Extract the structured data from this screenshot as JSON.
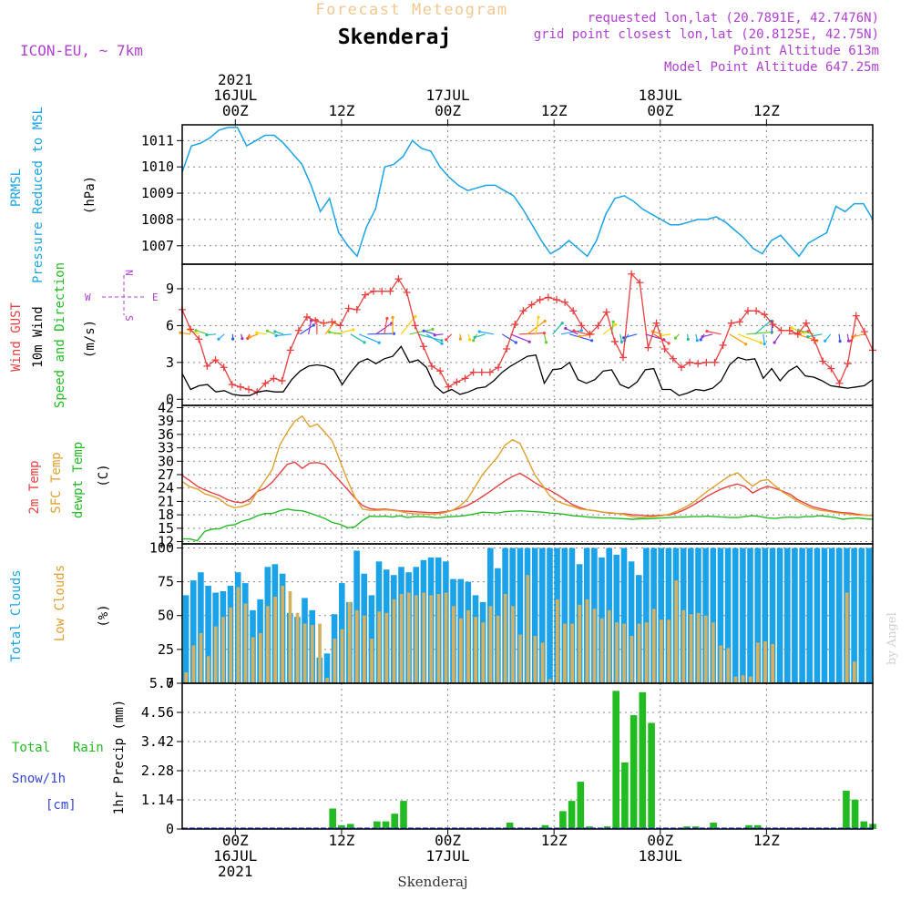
{
  "header": {
    "title": "Forecast Meteogram",
    "location": "Skenderaj",
    "model": "ICON-EU, ~ 7km",
    "requested": "requested lon,lat (20.7891E, 42.7476N)",
    "gridpoint": "grid point closest lon,lat (20.8125E, 42.75N)",
    "point_alt": "Point Altitude 613m",
    "model_alt": "Model Point Altitude 647.25m",
    "credit": "by Angel",
    "footer": "Skenderaj"
  },
  "colors": {
    "pressure": "#1aa3e8",
    "gust": "#e84040",
    "wind": "#000000",
    "temp2m": "#e84040",
    "sfctemp": "#e0a030",
    "dewpt": "#22bb22",
    "total_clouds": "#1aa3e8",
    "low_clouds": "#d4b060",
    "precip": "#22bb22",
    "snow": "#3344dd",
    "title": "#f0c890",
    "magenta": "#b040d0"
  },
  "chart_data": [
    {
      "type": "line",
      "panel": "pressure",
      "ylabel": [
        "PRMSL",
        "Pressure Reduced to MSL",
        "(hPa)"
      ],
      "ylim": [
        1006.3,
        1011.6
      ],
      "yticks": [
        1007,
        1008,
        1009,
        1010,
        1011
      ],
      "series": [
        {
          "values": [
            1009.8,
            1010.8,
            1010.9,
            1011.1,
            1011.4,
            1011.5,
            1011.5,
            1010.8,
            1011.0,
            1011.2,
            1011.2,
            1010.9,
            1010.5,
            1010.1,
            1009.3,
            1008.3,
            1008.8,
            1007.5,
            1007.0,
            1006.6,
            1007.7,
            1008.4,
            1010.0,
            1010.1,
            1010.4,
            1011.0,
            1010.7,
            1010.6,
            1010.0,
            1009.6,
            1009.3,
            1009.1,
            1009.2,
            1009.3,
            1009.3,
            1009.1,
            1008.9,
            1008.4,
            1007.8,
            1007.2,
            1006.7,
            1006.9,
            1007.2,
            1006.9,
            1006.6,
            1007.2,
            1008.2,
            1008.8,
            1008.9,
            1008.7,
            1008.4,
            1008.2,
            1008.0,
            1007.8,
            1007.8,
            1007.9,
            1008.0,
            1008.0,
            1008.1,
            1007.9,
            1007.6,
            1007.3,
            1006.9,
            1006.7,
            1007.2,
            1007.4,
            1007.0,
            1006.6,
            1007.1,
            1007.3,
            1007.5,
            1008.5,
            1008.3,
            1008.6,
            1008.6,
            1008.0
          ]
        }
      ]
    },
    {
      "type": "line",
      "panel": "wind",
      "ylabel": [
        "Wind GUST",
        "10m Wind",
        "Speed and Direction",
        "(m/s)"
      ],
      "compass": [
        "N",
        "S",
        "W",
        "E"
      ],
      "ylim": [
        -0.5,
        11
      ],
      "yticks": [
        0,
        3,
        6,
        9
      ],
      "series": [
        {
          "values": [
            7.3,
            5.7,
            4.9,
            2.7,
            3.2,
            2.6,
            1.2,
            1.0,
            0.8,
            0.6,
            1.3,
            1.7,
            1.5,
            4.0,
            5.6,
            6.7,
            6.4,
            6.2,
            6.3,
            6.0,
            7.4,
            7.3,
            8.5,
            8.8,
            8.8,
            8.8,
            9.8,
            8.7,
            6.0,
            4.3,
            2.7,
            2.3,
            1.0,
            1.4,
            1.7,
            2.2,
            2.2,
            2.2,
            2.6,
            4.1,
            6.1,
            7.2,
            7.7,
            8.1,
            8.3,
            8.1,
            7.9,
            7.2,
            6.0,
            5.3,
            6.0,
            7.1,
            4.7,
            3.4,
            10.2,
            9.5,
            4.2,
            6.2,
            4.1,
            3.3,
            2.6,
            3.0,
            2.9,
            3.0,
            3.0,
            4.4,
            6.2,
            6.3,
            7.2,
            7.2,
            6.9,
            6.1,
            5.6,
            5.6,
            5.3,
            6.2,
            4.8,
            3.1,
            2.5,
            1.3,
            2.9,
            6.8,
            5.5,
            4.0
          ]
        },
        {
          "values": [
            2.1,
            0.8,
            1.1,
            1.2,
            0.6,
            0.7,
            0.4,
            0.3,
            0.3,
            0.6,
            0.7,
            0.6,
            0.6,
            1.6,
            2.3,
            2.7,
            2.8,
            2.7,
            2.4,
            1.2,
            2.2,
            3.0,
            3.3,
            2.9,
            3.3,
            3.5,
            4.3,
            3.0,
            3.2,
            2.6,
            1.1,
            0.5,
            0.8,
            0.4,
            0.6,
            0.9,
            1.0,
            1.5,
            2.2,
            2.7,
            3.1,
            3.5,
            3.6,
            1.3,
            2.4,
            2.5,
            3.0,
            1.6,
            1.3,
            1.6,
            2.3,
            2.4,
            1.2,
            0.9,
            1.4,
            2.4,
            2.5,
            0.8,
            0.8,
            0.3,
            0.5,
            0.8,
            0.7,
            0.9,
            1.5,
            2.8,
            3.4,
            3.2,
            3.3,
            1.7,
            2.5,
            1.5,
            2.3,
            2.7,
            1.9,
            1.8,
            1.5,
            1.1,
            1.0,
            0.9,
            1.0,
            1.1,
            1.6
          ]
        }
      ]
    },
    {
      "type": "line",
      "panel": "temperature",
      "ylabel": [
        "2m Temp",
        "SFC Temp",
        "dewpt Temp",
        "(C)"
      ],
      "ylim": [
        11.5,
        42.5
      ],
      "yticks": [
        12,
        15,
        18,
        21,
        24,
        27,
        30,
        33,
        36,
        39,
        42
      ],
      "series": [
        {
          "values": [
            26.8,
            25.7,
            24.4,
            23.6,
            22.9,
            22.3,
            21.4,
            20.9,
            20.7,
            21.5,
            23.2,
            23.9,
            25.3,
            27.3,
            29.3,
            29.8,
            28.4,
            29.6,
            29.7,
            29.3,
            27.4,
            25.6,
            23.7,
            21.8,
            20.1,
            19.4,
            19.2,
            19.3,
            19.1,
            18.9,
            18.8,
            18.7,
            18.6,
            18.5,
            18.5,
            18.7,
            19.0,
            19.5,
            20.1,
            21.0,
            22.1,
            23.2,
            24.4,
            25.6,
            26.6,
            27.3,
            26.3,
            25.2,
            24.2,
            23.5,
            22.5,
            21.4,
            20.3,
            19.6,
            19.1,
            18.9,
            18.6,
            18.4,
            18.3,
            18.2,
            18.0,
            17.9,
            17.8,
            17.8,
            17.9,
            18.0,
            18.5,
            19.2,
            20.1,
            21.1,
            22.2,
            23.1,
            23.9,
            24.5,
            24.9,
            24.3,
            22.9,
            23.8,
            24.4,
            23.9,
            23.3,
            22.6,
            21.4,
            20.6,
            19.8,
            19.4,
            19.0,
            18.7,
            18.5,
            18.4,
            18.1,
            17.9,
            17.8
          ]
        },
        {
          "values": [
            25.5,
            24.3,
            23.8,
            22.7,
            22.2,
            21.5,
            20.2,
            19.6,
            19.9,
            20.5,
            23.2,
            25.6,
            28.2,
            33.6,
            36.5,
            39.0,
            40.1,
            37.7,
            38.3,
            36.5,
            34.5,
            30.2,
            25.8,
            22.0,
            19.3,
            19.0,
            19.0,
            19.1,
            19.0,
            18.8,
            18.4,
            18.2,
            18.2,
            18.1,
            18.2,
            18.5,
            19.0,
            20.0,
            21.5,
            24.2,
            27.0,
            29.0,
            30.9,
            33.6,
            34.8,
            34.0,
            30.5,
            26.9,
            24.6,
            22.2,
            21.0,
            20.4,
            19.9,
            19.3,
            19.1,
            18.9,
            18.6,
            18.5,
            18.3,
            18.0,
            17.6,
            17.4,
            17.5,
            17.6,
            17.8,
            18.2,
            18.9,
            19.7,
            20.7,
            22.0,
            23.3,
            24.5,
            25.7,
            26.8,
            27.4,
            25.8,
            24.4,
            25.6,
            25.9,
            24.5,
            23.1,
            22.1,
            21.0,
            20.1,
            19.4,
            19.0,
            18.8,
            18.5,
            18.3,
            18.1,
            17.9,
            17.9,
            17.8
          ]
        },
        {
          "values": [
            12.6,
            12.6,
            12.2,
            14.3,
            14.8,
            14.9,
            15.6,
            15.8,
            16.6,
            17.0,
            17.8,
            18.3,
            18.3,
            18.9,
            19.3,
            19.0,
            18.9,
            18.4,
            17.8,
            17.2,
            16.3,
            15.9,
            15.1,
            15.3,
            16.7,
            17.7,
            17.6,
            17.7,
            17.5,
            17.8,
            17.4,
            17.6,
            17.6,
            17.5,
            17.3,
            17.5,
            17.6,
            17.7,
            17.9,
            18.2,
            18.6,
            18.5,
            18.4,
            18.7,
            18.8,
            18.9,
            18.8,
            18.7,
            18.6,
            18.4,
            18.3,
            18.1,
            17.8,
            17.7,
            17.5,
            17.4,
            17.3,
            17.3,
            17.2,
            17.1,
            17.0,
            17.1,
            17.1,
            17.2,
            17.3,
            17.4,
            17.5,
            17.5,
            17.6,
            17.6,
            17.7,
            17.6,
            17.5,
            17.4,
            17.4,
            17.6,
            17.8,
            17.6,
            17.3,
            17.2,
            17.4,
            17.5,
            17.4,
            17.6,
            17.6,
            17.8,
            17.6,
            17.4,
            17.0,
            17.2,
            17.3,
            17.1,
            17.0
          ]
        }
      ]
    },
    {
      "type": "bar",
      "panel": "clouds",
      "ylabel": [
        "Total Clouds",
        "Low Clouds",
        "(%)"
      ],
      "ylim": [
        0,
        103
      ],
      "yticks": [
        0,
        25,
        50,
        75,
        100
      ],
      "series": [
        {
          "values": [
            65,
            76,
            82,
            72,
            67,
            68,
            72,
            82,
            74,
            54,
            62,
            86,
            88,
            81,
            52,
            49,
            63,
            54,
            19,
            22,
            51,
            74,
            60,
            98,
            81,
            65,
            90,
            84,
            80,
            86,
            82,
            86,
            91,
            93,
            93,
            90,
            77,
            77,
            75,
            65,
            60,
            100,
            85,
            100,
            100,
            100,
            100,
            100,
            100,
            100,
            100,
            100,
            100,
            88,
            100,
            100,
            93,
            100,
            95,
            100,
            90,
            80,
            100,
            100,
            100,
            100,
            100,
            100,
            100,
            100,
            100,
            100,
            100,
            100,
            100,
            100,
            100,
            100,
            100,
            100,
            100,
            100,
            100,
            100,
            100,
            100,
            100,
            100,
            100,
            100,
            100,
            100,
            100
          ]
        },
        {
          "values": [
            8,
            28,
            37,
            20,
            42,
            49,
            56,
            71,
            59,
            34,
            37,
            57,
            64,
            72,
            68,
            52,
            44,
            43,
            44,
            4,
            33,
            40,
            60,
            54,
            50,
            33,
            53,
            52,
            62,
            66,
            67,
            65,
            67,
            65,
            66,
            67,
            57,
            48,
            54,
            49,
            45,
            57,
            50,
            66,
            57,
            36,
            80,
            35,
            30,
            3,
            62,
            44,
            44,
            58,
            62,
            55,
            48,
            54,
            45,
            44,
            35,
            44,
            45,
            55,
            47,
            47,
            76,
            54,
            51,
            52,
            50,
            45,
            28,
            26,
            5,
            6,
            5,
            30,
            31,
            29,
            0,
            0,
            0,
            0,
            0,
            0,
            0,
            0,
            0,
            67,
            16,
            0,
            0
          ]
        }
      ]
    },
    {
      "type": "bar",
      "panel": "precip",
      "ylabel": [
        "1hr Precip (mm)"
      ],
      "legend": {
        "total_rain": [
          "Total",
          "Rain"
        ],
        "snow": "Snow/1h",
        "unit": "[cm]"
      },
      "ylim": [
        0,
        5.7
      ],
      "yticks": [
        "0",
        "1.14",
        "2.28",
        "3.42",
        "4.56",
        "5.7"
      ],
      "x": [
        17,
        18,
        19,
        20,
        22,
        23,
        24,
        25,
        37,
        41,
        43,
        44,
        45,
        46,
        48,
        49,
        50,
        51,
        52,
        53,
        57,
        58,
        60,
        64,
        65,
        75,
        76,
        77,
        78
      ],
      "values": [
        0.8,
        0.15,
        0.2,
        0.05,
        0.3,
        0.3,
        0.6,
        1.1,
        0.25,
        0.15,
        0.7,
        1.1,
        1.85,
        0.1,
        0.1,
        5.4,
        2.6,
        4.45,
        5.35,
        4.15,
        0.1,
        0.1,
        0.25,
        0.15,
        0.15,
        1.5,
        1.15,
        0.3,
        0.2
      ]
    }
  ],
  "time_axis": {
    "top": [
      {
        "h": 6,
        "lines": [
          "2021",
          "16JUL",
          "00Z"
        ]
      },
      {
        "h": 18,
        "lines": [
          "12Z"
        ]
      },
      {
        "h": 30,
        "lines": [
          "17JUL",
          "00Z"
        ]
      },
      {
        "h": 42,
        "lines": [
          "12Z"
        ]
      },
      {
        "h": 54,
        "lines": [
          "18JUL",
          "00Z"
        ]
      },
      {
        "h": 66,
        "lines": [
          "12Z"
        ]
      }
    ],
    "bottom": [
      {
        "h": 6,
        "lines": [
          "00Z",
          "16JUL",
          "2021"
        ]
      },
      {
        "h": 18,
        "lines": [
          "12Z"
        ]
      },
      {
        "h": 30,
        "lines": [
          "00Z",
          "17JUL"
        ]
      },
      {
        "h": 42,
        "lines": [
          "12Z"
        ]
      },
      {
        "h": 54,
        "lines": [
          "00Z",
          "18JUL"
        ]
      },
      {
        "h": 66,
        "lines": [
          "12Z"
        ]
      }
    ]
  }
}
